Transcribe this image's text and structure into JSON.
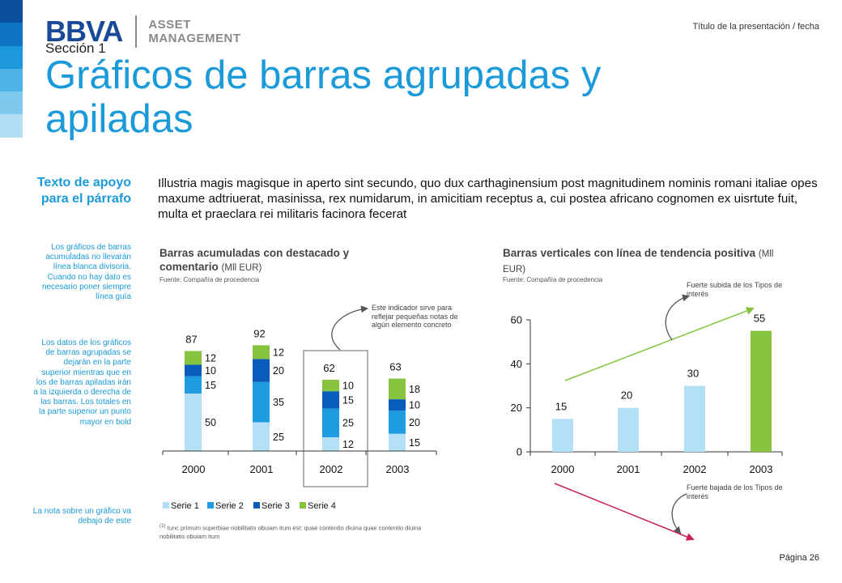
{
  "header": {
    "logo_text": "BBVA",
    "logo_sub_1": "ASSET",
    "logo_sub_2": "MANAGEMENT",
    "top_right": "Título de la presentación / fecha",
    "section": "Sección 1",
    "title": "Gráficos de barras agrupadas y apiladas"
  },
  "colors": {
    "strip": [
      "#0a4f9c",
      "#0f74c4",
      "#1e98dc",
      "#4db2e6",
      "#7fc8ee",
      "#b3def5"
    ],
    "serie1": "#b3e0f7",
    "serie2": "#1f9be0",
    "serie3": "#0a5cbc",
    "serie4": "#86c440",
    "accent": "#1a9ad9",
    "trend_up": "#86c440",
    "trend_down": "#c7245f"
  },
  "sidebar": {
    "support_title": "Texto de apoyo para el párrafo",
    "note_1": "Los gráficos de barras acumuladas no llevarán línea blanca divisoria. Cuando no hay dato es necesario poner siempre línea guía",
    "note_2": "Los datos de los gráficos de barras agrupadas se dejarán en la parte superior mientras que en los de barras apiladas irán a la izquierda o derecha de las barras. Los totales en la parte superior un punto mayor en bold",
    "note_3": "La nota sobre un gráfico va debajo de este"
  },
  "intro_text": "Illustria magis magisque in aperto sint secundo, quo dux carthaginensium post magnitudinem nominis romani italiae opes maxume adtriuerat, masinissa, rex numidarum, in amicitiam receptus a, cui postea africano cognomen ex uisrtute fuit, multa et praeclara rei militaris facinora fecerat",
  "chart1": {
    "title": "Barras acumuladas con destacado y comentario",
    "unit": "(Mll EUR)",
    "source": "Fuente: Compañía de procedencia",
    "annotation": "Este indicador sirve para reflejar pequeñas notas de algún elemento concreto",
    "footnote_mark": "(1)",
    "footnote": "tunc primum superbiae nobilitatis obuiam itum est: quae contentio diuina quae contentio diuina nobilitatis obuiam itum"
  },
  "chart2": {
    "title": "Barras verticales con línea de tendencia positiva",
    "unit": "(Mll EUR)",
    "source": "Fuente: Compañía de procedencia",
    "annotation_up": "Fuerte subida de los Tipos de interés",
    "annotation_down": "Fuerte bajada de los Tipos de interés"
  },
  "page_label": "Página 26",
  "chart_data": [
    {
      "type": "bar",
      "stacked": true,
      "categories": [
        "2000",
        "2001",
        "2002",
        "2003"
      ],
      "series": [
        {
          "name": "Serie 1",
          "values": [
            50,
            25,
            12,
            15
          ]
        },
        {
          "name": "Serie 2",
          "values": [
            15,
            35,
            25,
            20
          ]
        },
        {
          "name": "Serie 3",
          "values": [
            10,
            20,
            15,
            10
          ]
        },
        {
          "name": "Serie 4",
          "values": [
            12,
            12,
            10,
            18
          ]
        }
      ],
      "totals": [
        "87",
        "92",
        "62",
        "63"
      ],
      "highlight_category": "2002",
      "ylim": [
        0,
        100
      ],
      "legend": "bottom"
    },
    {
      "type": "bar",
      "categories": [
        "2000",
        "2001",
        "2002",
        "2003"
      ],
      "values": [
        15,
        20,
        30,
        55
      ],
      "yticks": [
        0,
        20,
        40,
        60
      ],
      "ylim": [
        0,
        60
      ],
      "highlight_category": "2003",
      "trend": "positive"
    }
  ]
}
